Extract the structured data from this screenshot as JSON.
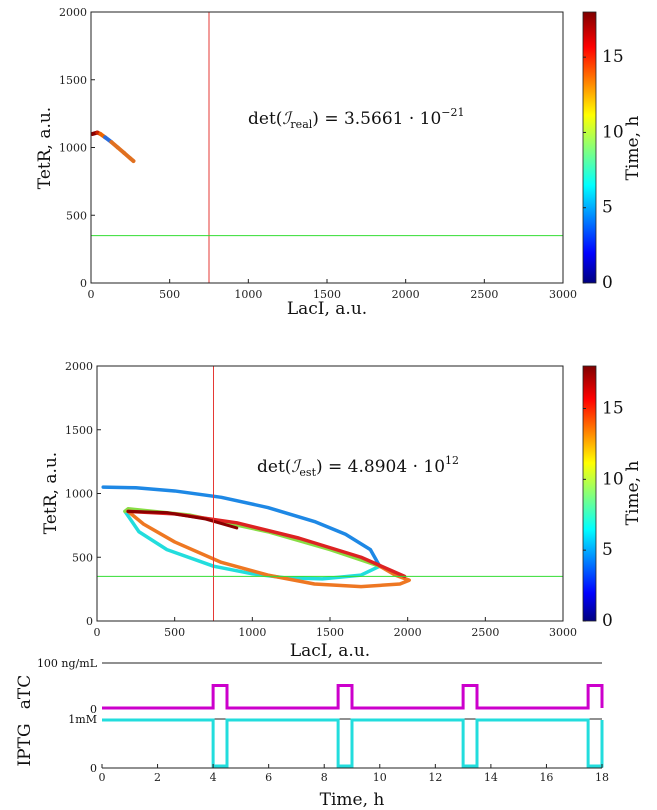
{
  "chart_data": [
    {
      "type": "line",
      "panel": "top",
      "xlabel": "LacI, a.u.",
      "ylabel": "TetR, a.u.",
      "xlim": [
        0,
        3000
      ],
      "ylim": [
        0,
        2000
      ],
      "xticks": [
        0,
        500,
        1000,
        1500,
        2000,
        2500,
        3000
      ],
      "yticks": [
        0,
        500,
        1000,
        1500,
        2000
      ],
      "annotation": {
        "prefix": "det(",
        "sym": "ℐ",
        "sub": "real",
        "mid": ") = 3.5661 · 10",
        "exp": "−21"
      },
      "colorbar": {
        "label": "Time, h",
        "range": [
          0,
          18
        ],
        "ticks": [
          0,
          5,
          10,
          15
        ]
      },
      "vline": {
        "x": 750,
        "color": "#e53935"
      },
      "hline": {
        "y": 350,
        "color": "#33dd33"
      },
      "trajectory": [
        [
          10,
          1100
        ],
        [
          40,
          1110
        ],
        [
          60,
          1100
        ],
        [
          90,
          1075
        ],
        [
          130,
          1040
        ],
        [
          170,
          1000
        ],
        [
          210,
          960
        ],
        [
          250,
          920
        ],
        [
          270,
          900
        ]
      ],
      "trajectory_colors": [
        "#8b0000",
        "#cc2200",
        "#ee6600",
        "#2a6dde",
        "#e07020",
        "#e07020",
        "#e07020",
        "#e07020"
      ]
    },
    {
      "type": "line",
      "panel": "middle",
      "xlabel": "LacI, a.u.",
      "ylabel": "TetR, a.u.",
      "xlim": [
        0,
        3000
      ],
      "ylim": [
        0,
        2000
      ],
      "xticks": [
        0,
        500,
        1000,
        1500,
        2000,
        2500,
        3000
      ],
      "yticks": [
        0,
        500,
        1000,
        1500,
        2000
      ],
      "annotation": {
        "prefix": "det(",
        "sym": "ℐ",
        "sub": "est",
        "mid": ") = 4.8904 · 10",
        "exp": "12"
      },
      "colorbar": {
        "label": "Time, h",
        "range": [
          0,
          18
        ],
        "ticks": [
          0,
          5,
          10,
          15
        ]
      },
      "vline": {
        "x": 750,
        "color": "#e53935"
      },
      "hline": {
        "y": 350,
        "color": "#33dd33"
      },
      "segments": [
        {
          "color": "#1e88e5",
          "points": [
            [
              40,
              1050
            ],
            [
              250,
              1045
            ],
            [
              500,
              1020
            ],
            [
              800,
              970
            ],
            [
              1100,
              890
            ],
            [
              1400,
              780
            ],
            [
              1600,
              680
            ],
            [
              1760,
              560
            ],
            [
              1820,
              430
            ]
          ]
        },
        {
          "color": "#22dddd",
          "points": [
            [
              1820,
              430
            ],
            [
              1700,
              360
            ],
            [
              1450,
              330
            ],
            [
              1200,
              340
            ],
            [
              1000,
              370
            ],
            [
              750,
              430
            ],
            [
              450,
              560
            ],
            [
              270,
              700
            ],
            [
              180,
              860
            ]
          ]
        },
        {
          "color": "#88dd44",
          "points": [
            [
              180,
              860
            ],
            [
              200,
              880
            ],
            [
              600,
              830
            ],
            [
              1100,
              700
            ],
            [
              1500,
              560
            ],
            [
              1820,
              430
            ]
          ]
        },
        {
          "color": "#ee7722",
          "points": [
            [
              1820,
              430
            ],
            [
              1920,
              360
            ],
            [
              2010,
              320
            ],
            [
              1950,
              290
            ],
            [
              1700,
              270
            ],
            [
              1400,
              290
            ],
            [
              1100,
              360
            ],
            [
              800,
              460
            ],
            [
              500,
              620
            ],
            [
              300,
              760
            ],
            [
              200,
              860
            ]
          ]
        },
        {
          "color": "#dd2222",
          "points": [
            [
              200,
              860
            ],
            [
              500,
              840
            ],
            [
              900,
              770
            ],
            [
              1300,
              650
            ],
            [
              1700,
              500
            ],
            [
              1980,
              350
            ]
          ]
        },
        {
          "color": "#8b0000",
          "points": [
            [
              200,
              860
            ],
            [
              450,
              850
            ],
            [
              700,
              800
            ],
            [
              900,
              730
            ]
          ]
        }
      ]
    },
    {
      "type": "line",
      "panel": "aTC",
      "ylabel": "aTC",
      "xlim": [
        0,
        18
      ],
      "ylim": [
        0,
        100
      ],
      "ytick_labels": [
        "0",
        "100 ng/mL"
      ],
      "color": "#cc00cc",
      "low": 0,
      "high": 50,
      "pulses": [
        [
          4.0,
          4.5
        ],
        [
          8.5,
          9.0
        ],
        [
          13.0,
          13.5
        ],
        [
          17.5,
          18.0
        ]
      ]
    },
    {
      "type": "line",
      "panel": "IPTG",
      "xlabel": "Time, h",
      "ylabel": "IPTG",
      "xlim": [
        0,
        18
      ],
      "ylim": [
        0,
        1
      ],
      "xticks": [
        0,
        2,
        4,
        6,
        8,
        10,
        12,
        14,
        16,
        18
      ],
      "ytick_labels": [
        "0",
        "1mM"
      ],
      "color": "#22dddd",
      "high": 1,
      "low": 0,
      "dips": [
        [
          4.0,
          4.5
        ],
        [
          8.5,
          9.0
        ],
        [
          13.0,
          13.5
        ],
        [
          17.5,
          18.0
        ]
      ]
    }
  ]
}
